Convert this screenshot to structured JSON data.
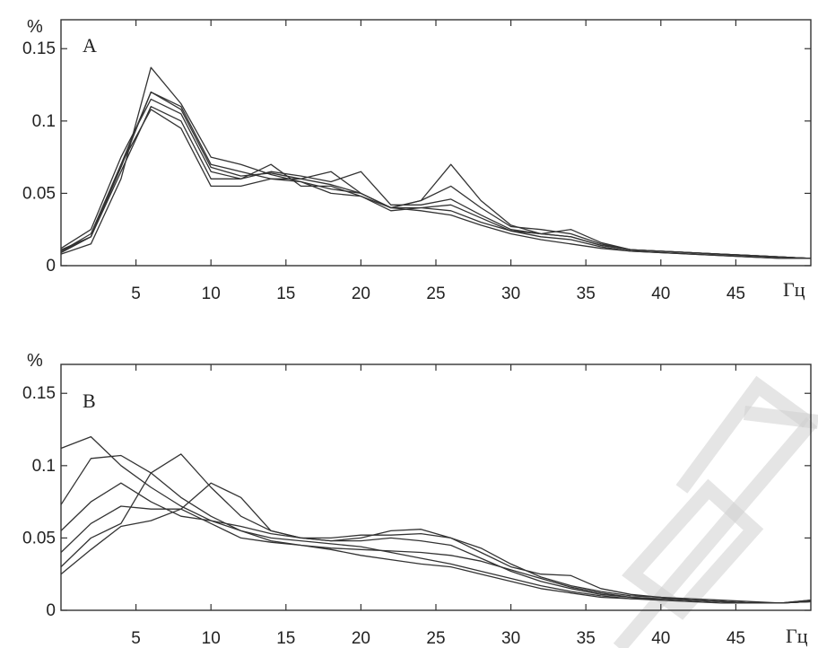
{
  "chart_data": [
    {
      "type": "line",
      "panel_label": "A",
      "ylabel": "%",
      "xlabel": "Гц",
      "xlim": [
        0,
        50
      ],
      "ylim": [
        0,
        0.17
      ],
      "xticks": [
        5,
        10,
        15,
        20,
        25,
        30,
        35,
        40,
        45
      ],
      "yticks": [
        0,
        0.05,
        0.1,
        0.15
      ],
      "ytick_labels": [
        "0",
        "0.05",
        "0.1",
        "0.15"
      ],
      "color": "#333333",
      "grid": false,
      "series": [
        {
          "x": [
            0,
            2,
            4,
            6,
            8,
            10,
            12,
            14,
            16,
            18,
            20,
            22,
            24,
            26,
            28,
            30,
            32,
            34,
            36,
            38,
            40,
            42,
            44,
            46,
            48,
            50
          ],
          "values": [
            0.008,
            0.015,
            0.06,
            0.137,
            0.112,
            0.075,
            0.07,
            0.063,
            0.058,
            0.053,
            0.05,
            0.04,
            0.045,
            0.07,
            0.045,
            0.028,
            0.022,
            0.02,
            0.014,
            0.011,
            0.01,
            0.009,
            0.008,
            0.007,
            0.006,
            0.005
          ]
        },
        {
          "x": [
            0,
            2,
            4,
            6,
            8,
            10,
            12,
            14,
            16,
            18,
            20,
            22,
            24,
            26,
            28,
            30,
            32,
            34,
            36,
            38,
            40,
            42,
            44,
            46,
            48,
            50
          ],
          "values": [
            0.01,
            0.02,
            0.07,
            0.12,
            0.11,
            0.07,
            0.065,
            0.06,
            0.06,
            0.065,
            0.05,
            0.04,
            0.045,
            0.055,
            0.04,
            0.027,
            0.025,
            0.022,
            0.015,
            0.011,
            0.01,
            0.009,
            0.008,
            0.007,
            0.006,
            0.005
          ]
        },
        {
          "x": [
            0,
            2,
            4,
            6,
            8,
            10,
            12,
            14,
            16,
            18,
            20,
            22,
            24,
            26,
            28,
            30,
            32,
            34,
            36,
            38,
            40,
            42,
            44,
            46,
            48,
            50
          ],
          "values": [
            0.012,
            0.025,
            0.075,
            0.115,
            0.105,
            0.065,
            0.06,
            0.065,
            0.062,
            0.058,
            0.065,
            0.042,
            0.042,
            0.046,
            0.035,
            0.025,
            0.022,
            0.02,
            0.014,
            0.011,
            0.01,
            0.009,
            0.008,
            0.007,
            0.006,
            0.005
          ]
        },
        {
          "x": [
            0,
            2,
            4,
            6,
            8,
            10,
            12,
            14,
            16,
            18,
            20,
            22,
            24,
            26,
            28,
            30,
            32,
            34,
            36,
            38,
            40,
            42,
            44,
            46,
            48,
            50
          ],
          "values": [
            0.009,
            0.02,
            0.065,
            0.11,
            0.1,
            0.06,
            0.06,
            0.07,
            0.055,
            0.055,
            0.048,
            0.038,
            0.04,
            0.042,
            0.033,
            0.024,
            0.02,
            0.018,
            0.013,
            0.01,
            0.009,
            0.008,
            0.007,
            0.006,
            0.005,
            0.005
          ]
        },
        {
          "x": [
            0,
            2,
            4,
            6,
            8,
            10,
            12,
            14,
            16,
            18,
            20,
            22,
            24,
            26,
            28,
            30,
            32,
            34,
            36,
            38,
            40,
            42,
            44,
            46,
            48,
            50
          ],
          "values": [
            0.01,
            0.022,
            0.07,
            0.108,
            0.095,
            0.055,
            0.055,
            0.06,
            0.058,
            0.05,
            0.048,
            0.04,
            0.038,
            0.035,
            0.028,
            0.022,
            0.018,
            0.015,
            0.012,
            0.01,
            0.009,
            0.008,
            0.007,
            0.006,
            0.005,
            0.005
          ]
        },
        {
          "x": [
            0,
            2,
            4,
            6,
            8,
            10,
            12,
            14,
            16,
            18,
            20,
            22,
            24,
            26,
            28,
            30,
            32,
            34,
            36,
            38,
            40,
            42,
            44,
            46,
            48,
            50
          ],
          "values": [
            0.011,
            0.02,
            0.068,
            0.12,
            0.108,
            0.068,
            0.062,
            0.064,
            0.06,
            0.056,
            0.05,
            0.04,
            0.04,
            0.038,
            0.03,
            0.024,
            0.022,
            0.025,
            0.016,
            0.011,
            0.01,
            0.009,
            0.008,
            0.007,
            0.006,
            0.005
          ]
        }
      ]
    },
    {
      "type": "line",
      "panel_label": "B",
      "ylabel": "%",
      "xlabel": "Гц",
      "xlim": [
        0,
        50
      ],
      "ylim": [
        0,
        0.17
      ],
      "xticks": [
        5,
        10,
        15,
        20,
        25,
        30,
        35,
        40,
        45
      ],
      "yticks": [
        0,
        0.05,
        0.1,
        0.15
      ],
      "ytick_labels": [
        "0",
        "0.05",
        "0.1",
        "0.15"
      ],
      "color": "#333333",
      "grid": false,
      "series": [
        {
          "x": [
            0,
            2,
            4,
            6,
            8,
            10,
            12,
            14,
            16,
            18,
            20,
            22,
            24,
            26,
            28,
            30,
            32,
            34,
            36,
            38,
            40,
            42,
            44,
            46,
            48,
            50
          ],
          "values": [
            0.112,
            0.12,
            0.1,
            0.085,
            0.072,
            0.062,
            0.055,
            0.05,
            0.048,
            0.046,
            0.044,
            0.04,
            0.036,
            0.032,
            0.027,
            0.022,
            0.017,
            0.013,
            0.01,
            0.008,
            0.008,
            0.007,
            0.006,
            0.005,
            0.005,
            0.006
          ]
        },
        {
          "x": [
            0,
            2,
            4,
            6,
            8,
            10,
            12,
            14,
            16,
            18,
            20,
            22,
            24,
            26,
            28,
            30,
            32,
            34,
            36,
            38,
            40,
            42,
            44,
            46,
            48,
            50
          ],
          "values": [
            0.073,
            0.105,
            0.107,
            0.095,
            0.078,
            0.065,
            0.055,
            0.048,
            0.045,
            0.043,
            0.042,
            0.041,
            0.04,
            0.038,
            0.034,
            0.028,
            0.022,
            0.016,
            0.012,
            0.009,
            0.008,
            0.007,
            0.006,
            0.005,
            0.005,
            0.006
          ]
        },
        {
          "x": [
            0,
            2,
            4,
            6,
            8,
            10,
            12,
            14,
            16,
            18,
            20,
            22,
            24,
            26,
            28,
            30,
            32,
            34,
            36,
            38,
            40,
            42,
            44,
            46,
            48,
            50
          ],
          "values": [
            0.055,
            0.075,
            0.088,
            0.075,
            0.065,
            0.062,
            0.058,
            0.053,
            0.05,
            0.05,
            0.052,
            0.052,
            0.053,
            0.05,
            0.043,
            0.032,
            0.023,
            0.017,
            0.013,
            0.01,
            0.009,
            0.007,
            0.006,
            0.005,
            0.005,
            0.007
          ]
        },
        {
          "x": [
            0,
            2,
            4,
            6,
            8,
            10,
            12,
            14,
            16,
            18,
            20,
            22,
            24,
            26,
            28,
            30,
            32,
            34,
            36,
            38,
            40,
            42,
            44,
            46,
            48,
            50
          ],
          "values": [
            0.04,
            0.06,
            0.072,
            0.07,
            0.07,
            0.088,
            0.078,
            0.055,
            0.05,
            0.048,
            0.05,
            0.055,
            0.056,
            0.05,
            0.04,
            0.03,
            0.025,
            0.024,
            0.015,
            0.011,
            0.009,
            0.008,
            0.007,
            0.006,
            0.005,
            0.006
          ]
        },
        {
          "x": [
            0,
            2,
            4,
            6,
            8,
            10,
            12,
            14,
            16,
            18,
            20,
            22,
            24,
            26,
            28,
            30,
            32,
            34,
            36,
            38,
            40,
            42,
            44,
            46,
            48,
            50
          ],
          "values": [
            0.03,
            0.05,
            0.06,
            0.095,
            0.108,
            0.085,
            0.065,
            0.055,
            0.05,
            0.048,
            0.048,
            0.05,
            0.048,
            0.045,
            0.036,
            0.027,
            0.02,
            0.015,
            0.011,
            0.009,
            0.008,
            0.007,
            0.006,
            0.005,
            0.005,
            0.007
          ]
        },
        {
          "x": [
            0,
            2,
            4,
            6,
            8,
            10,
            12,
            14,
            16,
            18,
            20,
            22,
            24,
            26,
            28,
            30,
            32,
            34,
            36,
            38,
            40,
            42,
            44,
            46,
            48,
            50
          ],
          "values": [
            0.025,
            0.042,
            0.058,
            0.062,
            0.07,
            0.06,
            0.05,
            0.047,
            0.045,
            0.042,
            0.038,
            0.035,
            0.032,
            0.03,
            0.025,
            0.02,
            0.015,
            0.012,
            0.009,
            0.008,
            0.007,
            0.006,
            0.005,
            0.005,
            0.005,
            0.006
          ]
        }
      ]
    }
  ]
}
